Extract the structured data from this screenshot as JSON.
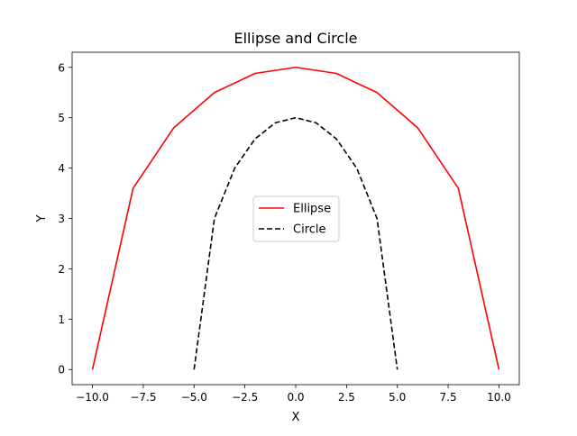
{
  "chart_data": {
    "type": "line",
    "title": "Ellipse and Circle",
    "xlabel": "X",
    "ylabel": "Y",
    "xlim": [
      -11,
      11
    ],
    "ylim": [
      -0.3,
      6.3
    ],
    "xticks": [
      -10.0,
      -7.5,
      -5.0,
      -2.5,
      0.0,
      2.5,
      5.0,
      7.5,
      10.0
    ],
    "xtick_labels": [
      "−10.0",
      "−7.5",
      "−5.0",
      "−2.5",
      "0.0",
      "2.5",
      "5.0",
      "7.5",
      "10.0"
    ],
    "yticks": [
      0,
      1,
      2,
      3,
      4,
      5,
      6
    ],
    "ytick_labels": [
      "0",
      "1",
      "2",
      "3",
      "4",
      "5",
      "6"
    ],
    "grid": false,
    "legend_position": "center",
    "series": [
      {
        "name": "Ellipse",
        "color": "#ff0000",
        "style": "solid",
        "x": [
          -10,
          -8,
          -6,
          -4,
          -2,
          0,
          2,
          4,
          6,
          8,
          10
        ],
        "y": [
          0,
          3.6,
          4.8,
          5.5,
          5.88,
          6.0,
          5.88,
          5.5,
          4.8,
          3.6,
          0
        ]
      },
      {
        "name": "Circle",
        "color": "#000000",
        "style": "dashed",
        "x": [
          -5,
          -4,
          -3,
          -2,
          -1,
          0,
          1,
          2,
          3,
          4,
          5
        ],
        "y": [
          0,
          3.0,
          4.0,
          4.58,
          4.9,
          5.0,
          4.9,
          4.58,
          4.0,
          3.0,
          0
        ]
      }
    ]
  }
}
